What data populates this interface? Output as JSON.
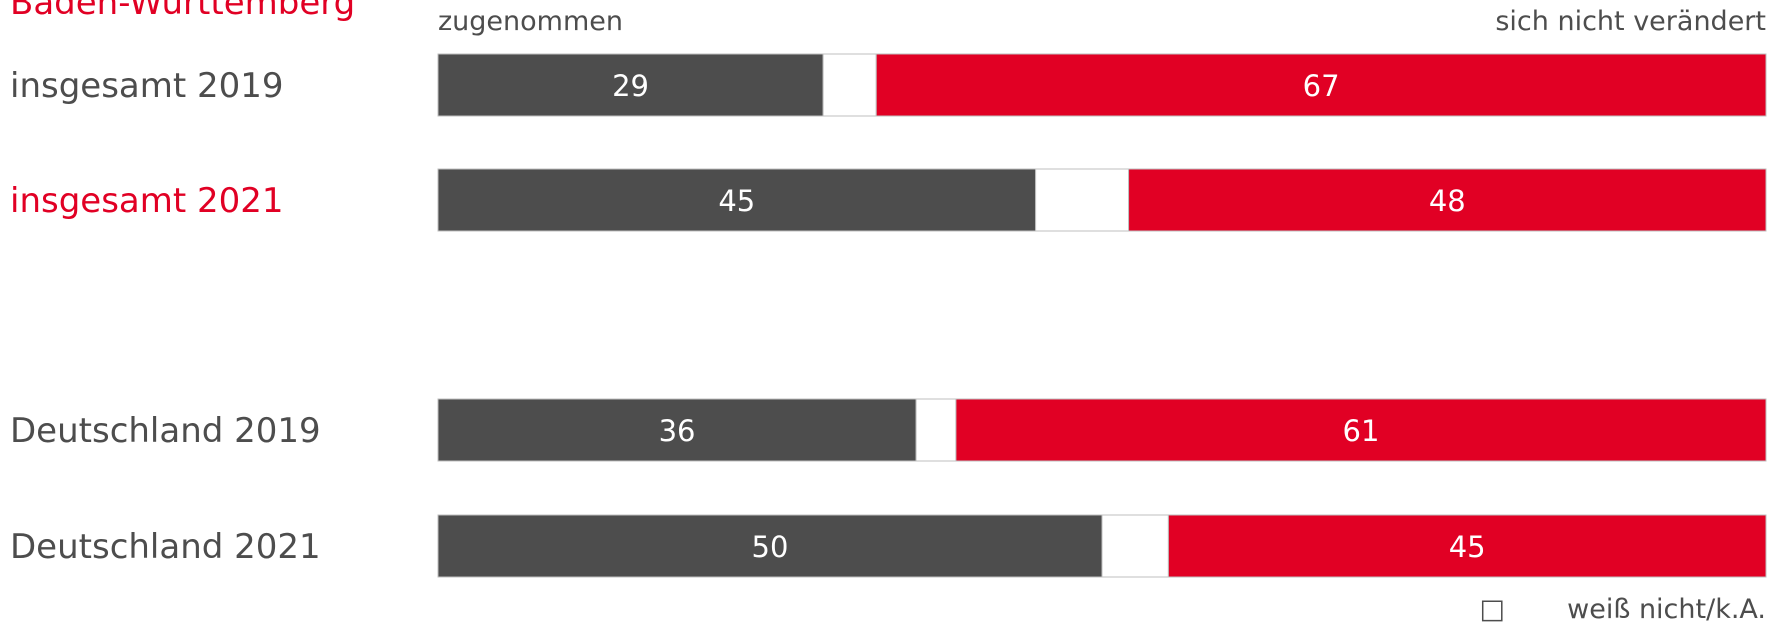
{
  "chart_data": {
    "type": "bar",
    "orientation": "horizontal",
    "stacked": true,
    "title": "Baden-Württemberg",
    "column_headers": {
      "left": "zugenommen",
      "right": "sich nicht verändert"
    },
    "categories": [
      "insgesamt 2019",
      "insgesamt 2021",
      "Deutschland 2019",
      "Deutschland 2021"
    ],
    "highlight_category": "insgesamt 2021",
    "series": [
      {
        "values": [
          29,
          45,
          36,
          50
        ],
        "color": "#4d4d4d"
      },
      {
        "name": "weiß nicht/k.A.",
        "values": [
          4,
          7,
          3,
          5
        ],
        "color": "#ffffff"
      },
      {
        "values": [
          67,
          48,
          61,
          45
        ],
        "color": "#e10024"
      }
    ],
    "data_labels": [
      [
        "29",
        "45",
        "36",
        "50"
      ],
      null,
      [
        "67",
        "48",
        "61",
        "45"
      ]
    ],
    "xlim": [
      0,
      100
    ],
    "legend": {
      "position": "bottom-right",
      "symbol": "□",
      "label": "weiß nicht/k.A."
    }
  },
  "colors": {
    "dark": "#4d4d4d",
    "red": "#e10024",
    "text": "#4d4d4d",
    "highlight_text": "#e10024",
    "outline": "#bfbfbf"
  }
}
